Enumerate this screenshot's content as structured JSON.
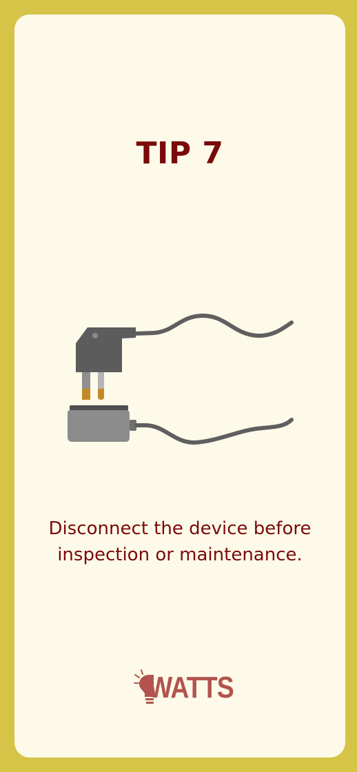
{
  "card": {
    "title": "TIP 7",
    "caption": "Disconnect the device before inspection or maintenance."
  },
  "illustration": {
    "name": "unplugged-charger"
  },
  "brand": {
    "logo_text": "WATTS"
  },
  "colors": {
    "frame": "#d5c447",
    "card": "#fdfae9",
    "title": "#7a0a0a",
    "caption": "#7a0a0a",
    "logo": "#b2534e",
    "cable": "#5f5f5f",
    "plug": "#5c5c5c",
    "socket": "#8c8c8c",
    "prong_tip": "#c48a28"
  }
}
